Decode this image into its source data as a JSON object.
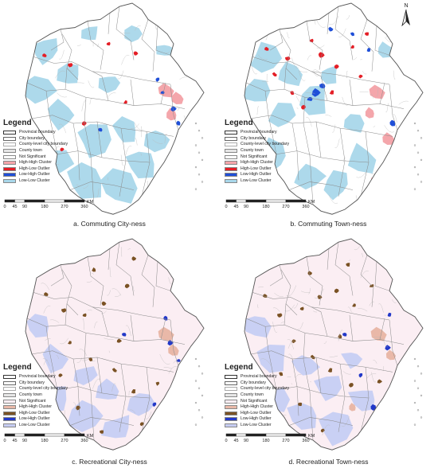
{
  "north_label": "N",
  "panels": [
    {
      "id": "a",
      "caption": "a. Commuting City-ness"
    },
    {
      "id": "b",
      "caption": "b. Commuting Town-ness"
    },
    {
      "id": "c",
      "caption": "c. Recreational City-ness"
    },
    {
      "id": "d",
      "caption": "d. Recreational Town-ness"
    }
  ],
  "legend": {
    "title": "Legend",
    "items": [
      {
        "label": "Provincial boundary",
        "kind": "line-thick"
      },
      {
        "label": "City boundary",
        "kind": "line"
      },
      {
        "label": "County-level city boundary",
        "kind": "line-thin"
      },
      {
        "label": "County town",
        "kind": "fill",
        "color": "#e6e6e6"
      },
      {
        "label": "Not Significant",
        "kind": "fill",
        "color": "#ffffff"
      },
      {
        "label": "High-High Cluster",
        "kind": "fill",
        "color": "#f4a6ab"
      },
      {
        "label": "High-Low Outlier",
        "kind": "fill",
        "color": "#e41e26"
      },
      {
        "label": "Low-High Outlier",
        "kind": "fill",
        "color": "#1f4fd8"
      },
      {
        "label": "Low-Low Cluster",
        "kind": "fill",
        "color": "#a9d7ea"
      }
    ],
    "items_recreational": [
      {
        "label": "Provincial boundary",
        "kind": "line-thick"
      },
      {
        "label": "City boundary",
        "kind": "line"
      },
      {
        "label": "County-level city boundary",
        "kind": "line-thin"
      },
      {
        "label": "County town",
        "kind": "fill",
        "color": "#e6e6e6"
      },
      {
        "label": "Not Significant",
        "kind": "fill",
        "color": "#fbeef3"
      },
      {
        "label": "High-High Cluster",
        "kind": "fill",
        "color": "#e9b8a8"
      },
      {
        "label": "High-Low Outlier",
        "kind": "fill",
        "color": "#7a5224"
      },
      {
        "label": "Low-High Outlier",
        "kind": "fill",
        "color": "#2238c8"
      },
      {
        "label": "Low-Low Cluster",
        "kind": "fill",
        "color": "#c6cdf3"
      }
    ]
  },
  "scale": {
    "ticks": [
      "0",
      "45",
      "90",
      "180",
      "270",
      "360"
    ],
    "unit": "KM"
  },
  "colors": {
    "low_low": "#a9d7ea",
    "high_high": "#f4a6ab",
    "high_low": "#e41e26",
    "low_high": "#1f4fd8",
    "rec_low_low": "#c6cdf3",
    "rec_high_high": "#e9b8a8",
    "rec_high_low": "#7a5224",
    "rec_low_high": "#2238c8",
    "rec_ns": "#fbeef3"
  }
}
